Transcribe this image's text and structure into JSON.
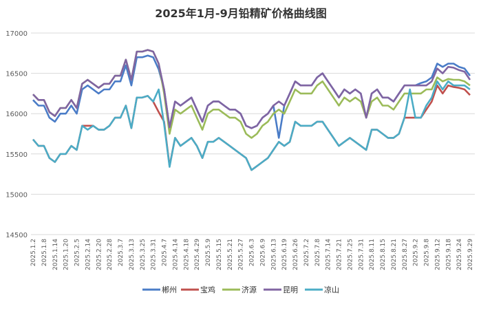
{
  "chart_data": {
    "type": "line",
    "title": "2025年1月-9月铅精矿价格曲线图",
    "xlabel": "",
    "ylabel": "",
    "ylim": [
      14500,
      17000
    ],
    "yticks": [
      14500,
      15000,
      15500,
      16000,
      16500,
      17000
    ],
    "grid": true,
    "legend_position": "bottom",
    "tick_labels": [
      "2025.1.2",
      "2025.1.8",
      "2025.1.14",
      "2025.1.20",
      "2025.2.5",
      "2025.2.14",
      "2025.2.20",
      "2025.2.28",
      "2025.3.7",
      "2025.3.13",
      "2025.3.25",
      "2025.3.31",
      "2025.4.7",
      "2025.4.14",
      "2025.4.18",
      "2025.4.29",
      "2025.5.9",
      "2025.5.15",
      "2025.5.21",
      "2025.5.27",
      "2025.6.3",
      "2025.6.9",
      "2025.6.13",
      "2025.6.19",
      "2025.6.26",
      "2025.7.2",
      "2025.7.8",
      "2025.7.14",
      "2025.7.21",
      "2025.7.25",
      "2025.7.31",
      "2025.8.11",
      "2025.8.15",
      "2025.8.21",
      "2025.8.27",
      "2025.9.2",
      "2025.9.8",
      "2025.9.12",
      "2025.9.18",
      "2025.9.24",
      "2025.9.29"
    ],
    "x": [
      "2025.1.2",
      "2025.1.6",
      "2025.1.8",
      "2025.1.10",
      "2025.1.14",
      "2025.1.16",
      "2025.1.20",
      "2025.1.23",
      "2025.2.5",
      "2025.2.10",
      "2025.2.14",
      "2025.2.18",
      "2025.2.20",
      "2025.2.25",
      "2025.2.28",
      "2025.3.4",
      "2025.3.7",
      "2025.3.11",
      "2025.3.13",
      "2025.3.19",
      "2025.3.25",
      "2025.3.27",
      "2025.3.31",
      "2025.4.2",
      "2025.4.7",
      "2025.4.10",
      "2025.4.14",
      "2025.4.16",
      "2025.4.18",
      "2025.4.24",
      "2025.4.29",
      "2025.5.7",
      "2025.5.9",
      "2025.5.13",
      "2025.5.15",
      "2025.5.19",
      "2025.5.21",
      "2025.5.23",
      "2025.5.27",
      "2025.5.29",
      "2025.6.3",
      "2025.6.5",
      "2025.6.9",
      "2025.6.11",
      "2025.6.13",
      "2025.6.17",
      "2025.6.19",
      "2025.6.24",
      "2025.6.26",
      "2025.6.30",
      "2025.7.2",
      "2025.7.4",
      "2025.7.8",
      "2025.7.10",
      "2025.7.14",
      "2025.7.17",
      "2025.7.21",
      "2025.7.23",
      "2025.7.25",
      "2025.7.29",
      "2025.7.31",
      "2025.8.6",
      "2025.8.11",
      "2025.8.13",
      "2025.8.15",
      "2025.8.19",
      "2025.8.21",
      "2025.8.25",
      "2025.8.27",
      "2025.8.29",
      "2025.9.2",
      "2025.9.4",
      "2025.9.8",
      "2025.9.10",
      "2025.9.12",
      "2025.9.16",
      "2025.9.18",
      "2025.9.22",
      "2025.9.24",
      "2025.9.26",
      "2025.9.29"
    ],
    "series": [
      {
        "name": "郴州",
        "color": "#4a7cc7",
        "values": [
          16170,
          16100,
          16100,
          15950,
          15900,
          16000,
          16000,
          16100,
          16000,
          16300,
          16350,
          16300,
          16250,
          16300,
          16300,
          16400,
          16400,
          16600,
          16350,
          16700,
          16700,
          16720,
          16700,
          16550,
          16300,
          15830,
          16150,
          16100,
          16150,
          16200,
          16050,
          15900,
          16100,
          16150,
          16150,
          16100,
          16050,
          16050,
          16000,
          15850,
          15820,
          15850,
          15950,
          16000,
          16100,
          15700,
          16100,
          16250,
          16400,
          16350,
          16350,
          16350,
          16450,
          16500,
          16400,
          16300,
          16200,
          16300,
          16250,
          16300,
          16250,
          15950,
          16250,
          16300,
          16200,
          16200,
          16150,
          16250,
          16350,
          16350,
          16350,
          16380,
          16400,
          16450,
          16620,
          16580,
          16620,
          16620,
          16580,
          16560,
          16470
        ]
      },
      {
        "name": "宝鸡",
        "color": "#c0504d",
        "values": [
          15680,
          15600,
          15600,
          15450,
          15400,
          15500,
          15500,
          15600,
          15550,
          15850,
          15850,
          15850,
          15800,
          15800,
          15850,
          15950,
          15950,
          16100,
          15820,
          16200,
          16200,
          16220,
          16150,
          16020,
          15900,
          15350,
          15700,
          15600,
          15650,
          15700,
          15600,
          15450,
          15650,
          15650,
          15700,
          15650,
          15600,
          15550,
          15500,
          15450,
          15300,
          15350,
          15400,
          15450,
          15550,
          15650,
          15600,
          15650,
          15900,
          15850,
          15850,
          15850,
          15900,
          15900,
          15800,
          15700,
          15600,
          15650,
          15700,
          15650,
          15600,
          15550,
          15800,
          15800,
          15750,
          15700,
          15700,
          15750,
          15950,
          15950,
          15950,
          15950,
          16050,
          16150,
          16350,
          16250,
          16350,
          16330,
          16320,
          16300,
          16230
        ]
      },
      {
        "name": "济源",
        "color": "#9bbb59",
        "values": [
          16240,
          16170,
          16170,
          16020,
          15970,
          16070,
          16070,
          16170,
          16070,
          16370,
          16420,
          16370,
          16320,
          16370,
          16370,
          16470,
          16470,
          16670,
          16420,
          16770,
          16770,
          16790,
          16770,
          16620,
          16250,
          15750,
          16050,
          16000,
          16050,
          16100,
          15950,
          15800,
          16000,
          16050,
          16050,
          16000,
          15950,
          15950,
          15900,
          15750,
          15700,
          15750,
          15850,
          15900,
          16000,
          16050,
          16000,
          16150,
          16300,
          16250,
          16250,
          16250,
          16350,
          16400,
          16300,
          16200,
          16100,
          16200,
          16150,
          16200,
          16150,
          15950,
          16150,
          16200,
          16100,
          16100,
          16050,
          16150,
          16250,
          16250,
          16250,
          16250,
          16300,
          16300,
          16450,
          16400,
          16430,
          16420,
          16420,
          16400,
          16350
        ]
      },
      {
        "name": "昆明",
        "color": "#8064a2",
        "values": [
          16240,
          16170,
          16170,
          16020,
          15970,
          16070,
          16070,
          16170,
          16070,
          16370,
          16420,
          16370,
          16320,
          16370,
          16370,
          16470,
          16470,
          16670,
          16420,
          16770,
          16770,
          16790,
          16770,
          16620,
          16300,
          15830,
          16150,
          16100,
          16150,
          16200,
          16050,
          15900,
          16100,
          16150,
          16150,
          16100,
          16050,
          16050,
          16000,
          15850,
          15820,
          15850,
          15950,
          16000,
          16100,
          16150,
          16100,
          16250,
          16400,
          16350,
          16350,
          16350,
          16450,
          16500,
          16400,
          16300,
          16200,
          16300,
          16250,
          16300,
          16250,
          15950,
          16250,
          16300,
          16200,
          16200,
          16150,
          16250,
          16350,
          16350,
          16350,
          16350,
          16350,
          16400,
          16560,
          16500,
          16580,
          16570,
          16540,
          16520,
          16420
        ]
      },
      {
        "name": "凉山",
        "color": "#4bacc6",
        "values": [
          15680,
          15600,
          15600,
          15450,
          15400,
          15500,
          15500,
          15600,
          15550,
          15850,
          15800,
          15850,
          15800,
          15800,
          15850,
          15950,
          15950,
          16100,
          15820,
          16200,
          16200,
          16220,
          16150,
          16300,
          15870,
          15340,
          15700,
          15600,
          15650,
          15700,
          15600,
          15450,
          15650,
          15650,
          15700,
          15650,
          15600,
          15550,
          15500,
          15450,
          15300,
          15350,
          15400,
          15450,
          15550,
          15650,
          15600,
          15650,
          15900,
          15850,
          15850,
          15850,
          15900,
          15900,
          15800,
          15700,
          15600,
          15650,
          15700,
          15650,
          15600,
          15550,
          15800,
          15800,
          15750,
          15700,
          15700,
          15750,
          15950,
          16300,
          15950,
          15950,
          16100,
          16200,
          16400,
          16300,
          16400,
          16350,
          16350,
          16350,
          16300
        ]
      }
    ]
  }
}
